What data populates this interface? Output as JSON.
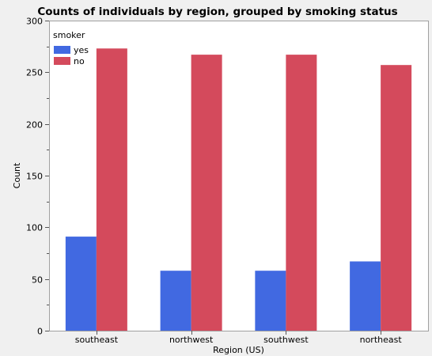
{
  "chart_data": {
    "type": "bar",
    "title": "Counts of individuals by region, grouped by smoking status",
    "xlabel": "Region (US)",
    "ylabel": "Count",
    "categories": [
      "southeast",
      "northwest",
      "southwest",
      "northeast"
    ],
    "series": [
      {
        "name": "yes",
        "values": [
          91,
          58,
          58,
          67
        ]
      },
      {
        "name": "no",
        "values": [
          273,
          267,
          267,
          257
        ]
      }
    ],
    "ylim": [
      0,
      300
    ],
    "yticks": [
      0,
      50,
      100,
      150,
      200,
      250,
      300
    ],
    "legend": {
      "title": "smoker",
      "placement": "top-left"
    },
    "colors": {
      "yes": "#4169e1",
      "no": "#d44a5c"
    },
    "grid": false
  }
}
